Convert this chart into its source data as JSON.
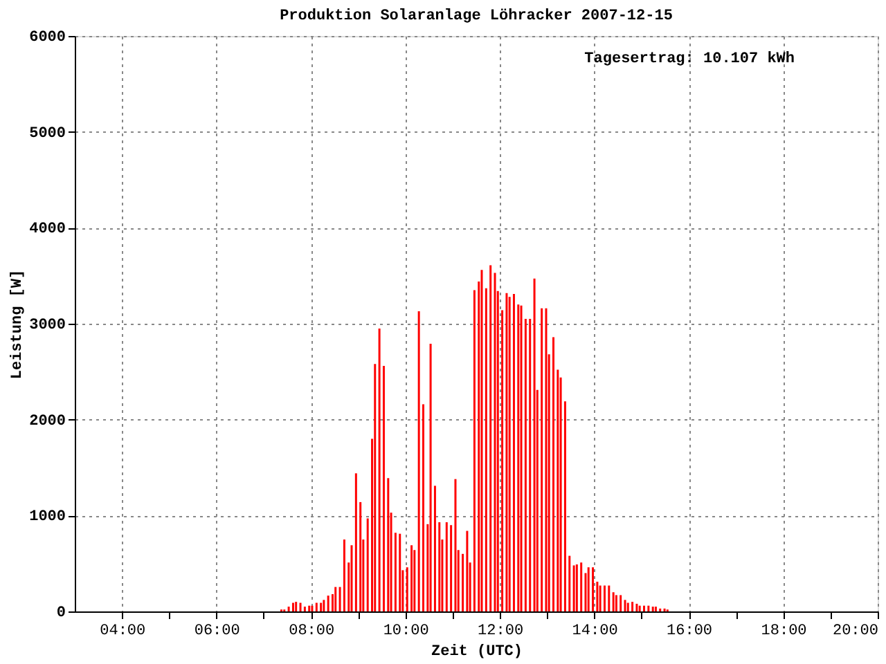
{
  "chart_data": {
    "type": "bar",
    "title": "Produktion Solaranlage Löhracker 2007-12-15",
    "xlabel": "Zeit (UTC)",
    "ylabel": "Leistung [W]",
    "annotations": [
      "Tagesertrag: 10.107 kWh"
    ],
    "x": [
      7.375,
      7.437,
      7.53,
      7.623,
      7.685,
      7.778,
      7.871,
      7.964,
      8.026,
      8.119,
      8.212,
      8.274,
      8.366,
      8.459,
      8.521,
      8.614,
      8.707,
      8.8,
      8.862,
      8.955,
      9.048,
      9.109,
      9.202,
      9.295,
      9.357,
      9.45,
      9.543,
      9.636,
      9.698,
      9.791,
      9.884,
      9.945,
      10.038,
      10.131,
      10.193,
      10.286,
      10.379,
      10.472,
      10.534,
      10.627,
      10.72,
      10.781,
      10.874,
      10.967,
      11.06,
      11.122,
      11.215,
      11.308,
      11.37,
      11.462,
      11.555,
      11.617,
      11.71,
      11.803,
      11.896,
      11.958,
      12.051,
      12.144,
      12.206,
      12.298,
      12.391,
      12.453,
      12.546,
      12.639,
      12.732,
      12.794,
      12.887,
      12.98,
      13.041,
      13.134,
      13.227,
      13.289,
      13.382,
      13.475,
      13.568,
      13.63,
      13.723,
      13.815,
      13.877,
      13.97,
      14.063,
      14.125,
      14.218,
      14.311,
      14.404,
      14.466,
      14.558,
      14.651,
      14.713,
      14.806,
      14.899,
      14.961,
      15.054,
      15.147,
      15.24,
      15.302,
      15.394,
      15.487,
      15.549
    ],
    "series": [
      {
        "color": "#ff0000",
        "values": [
          20,
          20,
          50,
          90,
          100,
          90,
          50,
          60,
          60,
          90,
          90,
          120,
          165,
          180,
          255,
          255,
          750,
          510,
          690,
          1440,
          1140,
          750,
          970,
          1800,
          2580,
          2950,
          2560,
          1390,
          1030,
          820,
          810,
          430,
          460,
          690,
          640,
          3130,
          2160,
          910,
          2790,
          1310,
          930,
          750,
          930,
          900,
          1380,
          640,
          600,
          840,
          510,
          3350,
          3440,
          3560,
          3370,
          3610,
          3530,
          3340,
          3140,
          3320,
          3280,
          3310,
          3200,
          3190,
          3050,
          3050,
          3470,
          2310,
          3160,
          3160,
          2680,
          2860,
          2520,
          2440,
          2190,
          580,
          480,
          490,
          510,
          400,
          460,
          460,
          310,
          270,
          270,
          270,
          200,
          170,
          170,
          120,
          90,
          100,
          80,
          60,
          60,
          60,
          50,
          50,
          30,
          30,
          20
        ]
      }
    ],
    "xlim": [
      3,
      20
    ],
    "xticks": [
      {
        "value": 4,
        "label": "04:00"
      },
      {
        "value": 5,
        "label": null
      },
      {
        "value": 6,
        "label": "06:00"
      },
      {
        "value": 7,
        "label": null
      },
      {
        "value": 8,
        "label": "08:00"
      },
      {
        "value": 9,
        "label": null
      },
      {
        "value": 10,
        "label": "10:00"
      },
      {
        "value": 11,
        "label": null
      },
      {
        "value": 12,
        "label": "12:00"
      },
      {
        "value": 13,
        "label": null
      },
      {
        "value": 14,
        "label": "14:00"
      },
      {
        "value": 15,
        "label": null
      },
      {
        "value": 16,
        "label": "16:00"
      },
      {
        "value": 17,
        "label": null
      },
      {
        "value": 18,
        "label": "18:00"
      },
      {
        "value": 19,
        "label": null
      },
      {
        "value": 20,
        "label": "20:00"
      }
    ],
    "ylim": [
      0,
      6000
    ],
    "yticks": [
      0,
      1000,
      2000,
      3000,
      4000,
      5000,
      6000
    ],
    "grid": true
  }
}
